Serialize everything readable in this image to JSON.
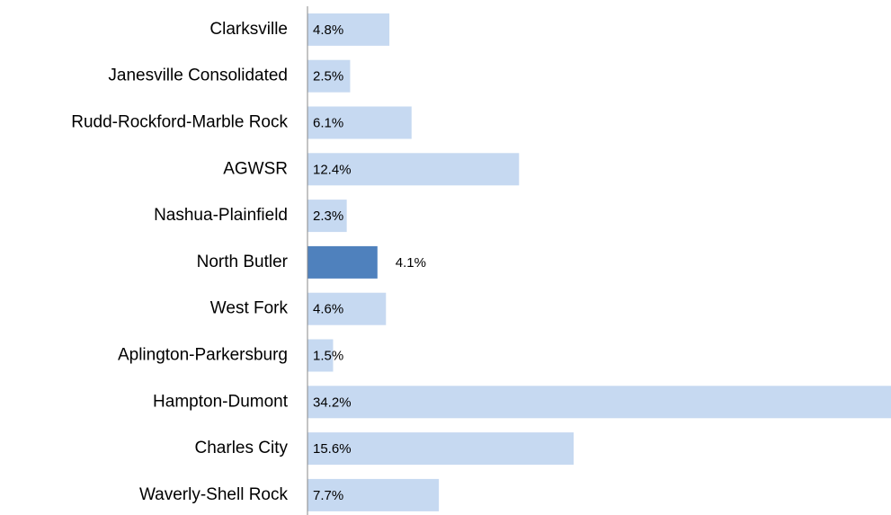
{
  "chart_data": {
    "type": "barh",
    "categories": [
      "Clarksville",
      "Janesville Consolidated",
      "Rudd-Rockford-Marble Rock",
      "AGWSR",
      "Nashua-Plainfield",
      "North Butler",
      "West Fork",
      "Aplington-Parkersburg",
      "Hampton-Dumont",
      "Charles City",
      "Waverly-Shell Rock"
    ],
    "values": [
      4.8,
      2.5,
      6.1,
      12.4,
      2.3,
      4.1,
      4.6,
      1.5,
      34.2,
      15.6,
      7.7
    ],
    "value_labels": [
      "4.8%",
      "2.5%",
      "6.1%",
      "12.4%",
      "2.3%",
      "4.1%",
      "4.6%",
      "1.5%",
      "34.2%",
      "15.6%",
      "7.7%"
    ],
    "colors": [
      "#c6d9f1",
      "#c6d9f1",
      "#c6d9f1",
      "#c6d9f1",
      "#c6d9f1",
      "#4f81bd",
      "#c6d9f1",
      "#c6d9f1",
      "#c6d9f1",
      "#c6d9f1",
      "#c6d9f1"
    ]
  }
}
